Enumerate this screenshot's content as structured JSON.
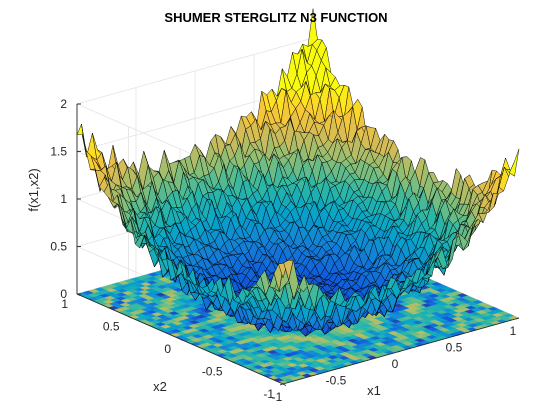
{
  "chart_data": {
    "type": "surface",
    "title": "SHUMER STERGLITZ N3 FUNCTION",
    "xlabel": "x1",
    "ylabel": "x2",
    "zlabel": "f(x1,x2)",
    "xlim": [
      -1,
      1
    ],
    "ylim": [
      -1,
      1
    ],
    "zlim": [
      0,
      2
    ],
    "xticks": [
      -1,
      -0.5,
      0,
      0.5,
      1
    ],
    "yticks": [
      -1,
      -0.5,
      0,
      0.5,
      1
    ],
    "zticks": [
      0,
      0.5,
      1,
      1.5,
      2
    ],
    "xtick_labels": [
      "-1",
      "-0.5",
      "0",
      "0.5",
      "1"
    ],
    "ytick_labels": [
      "-1",
      "-0.5",
      "0",
      "0.5",
      "1"
    ],
    "ztick_labels": [
      "0",
      "0.5",
      "1",
      "1.5",
      "2"
    ],
    "colormap": "parula",
    "colormap_stops": [
      "#352a87",
      "#0f5cdd",
      "#1481d6",
      "#06a4ca",
      "#2eb7a4",
      "#87bf77",
      "#d1bb59",
      "#fec832",
      "#f9fb0e"
    ],
    "grid": true,
    "edge_color": "#000000",
    "contour_projection_on_floor": true,
    "surface_samples": {
      "note_values": "approximate f at corners and centre",
      "corner_x1_neg_x2_neg": 1.0,
      "corner_x1_pos_x2_neg": 1.1,
      "corner_x1_neg_x2_pos": 1.5,
      "corner_x1_pos_x2_pos": 1.9,
      "centre": 0.05
    }
  }
}
